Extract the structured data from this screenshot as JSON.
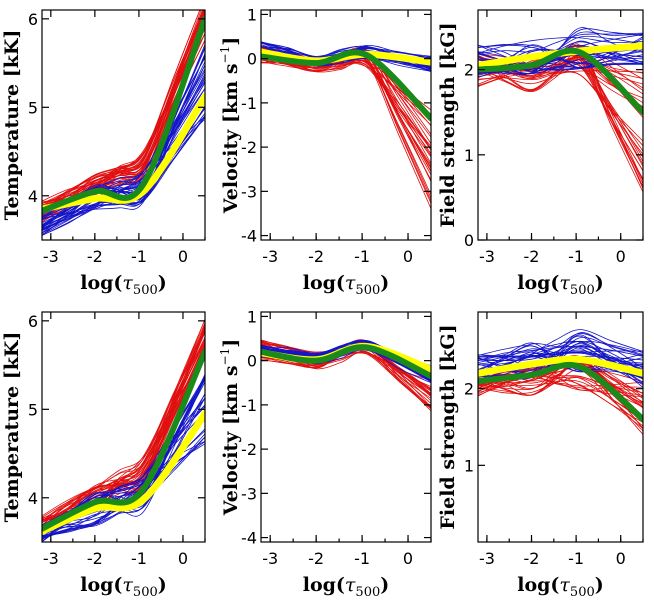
{
  "figure": {
    "rows": 2,
    "cols": 3
  },
  "colors": {
    "red": "#e01010",
    "blue": "#1414c8",
    "yellow": "#ffff00",
    "green": "#1a8a1a"
  },
  "chart_data": [
    {
      "id": "r1-temperature",
      "type": "line",
      "ylabel_main": "Temperature [kK]",
      "xlabel_main": "log(",
      "xlabel_tau": "τ",
      "xlabel_sub": "500",
      "xlabel_close": ")",
      "xlim": [
        -3.2,
        0.5
      ],
      "ylim": [
        3.5,
        6.1
      ],
      "xticks": [
        -3,
        -2,
        -1,
        0
      ],
      "xtick_labels": [
        "-3",
        "-2",
        "-1",
        "0"
      ],
      "yticks": [
        4,
        5,
        6
      ],
      "ytick_labels": [
        "4",
        "5",
        "6"
      ],
      "x_nodes": [
        -3.2,
        -2.0,
        -0.9,
        0.5
      ],
      "bundles": [
        {
          "name": "red",
          "color": "red",
          "count": 34,
          "base": [
            3.82,
            4.12,
            4.38,
            6.0
          ],
          "spread": [
            0.12,
            0.12,
            0.15,
            0.25
          ]
        },
        {
          "name": "blue",
          "count": 34,
          "color": "blue",
          "base": [
            3.68,
            3.98,
            4.1,
            5.3
          ],
          "spread": [
            0.13,
            0.15,
            0.18,
            0.45
          ]
        }
      ],
      "series": [
        {
          "name": "mean-blue",
          "color": "yellow",
          "width": 7,
          "values": [
            3.85,
            3.97,
            4.05,
            5.12
          ]
        },
        {
          "name": "mean-red",
          "color": "green",
          "width": 6,
          "values": [
            3.83,
            4.05,
            4.13,
            6.0
          ]
        }
      ]
    },
    {
      "id": "r1-velocity",
      "type": "line",
      "ylabel_main": "Velocity [km s",
      "ylabel_sup": "−1",
      "ylabel_close": "]",
      "xlabel_main": "log(",
      "xlabel_tau": "τ",
      "xlabel_sub": "500",
      "xlabel_close": ")",
      "xlim": [
        -3.2,
        0.5
      ],
      "ylim": [
        -4.1,
        1.1
      ],
      "xticks": [
        -3,
        -2,
        -1,
        0
      ],
      "xtick_labels": [
        "-3",
        "-2",
        "-1",
        "0"
      ],
      "yticks": [
        -4,
        -3,
        -2,
        -1,
        0,
        1
      ],
      "ytick_labels": [
        "-4",
        "-3",
        "-2",
        "-1",
        "0",
        "1"
      ],
      "x_nodes": [
        -3.2,
        -2.0,
        -0.9,
        0.5
      ],
      "bundles": [
        {
          "name": "red",
          "color": "red",
          "count": 32,
          "base": [
            0.1,
            -0.15,
            0.0,
            -2.4
          ],
          "spread": [
            0.2,
            0.15,
            0.2,
            1.3
          ]
        },
        {
          "name": "blue",
          "color": "blue",
          "count": 30,
          "base": [
            0.2,
            -0.05,
            0.15,
            -0.1
          ],
          "spread": [
            0.2,
            0.12,
            0.15,
            0.2
          ]
        }
      ],
      "series": [
        {
          "name": "mean-blue",
          "color": "yellow",
          "width": 7,
          "values": [
            0.15,
            -0.05,
            0.1,
            -0.08
          ]
        },
        {
          "name": "mean-red",
          "color": "green",
          "width": 6,
          "values": [
            0.05,
            -0.1,
            0.08,
            -1.35
          ]
        }
      ]
    },
    {
      "id": "r1-field",
      "type": "line",
      "ylabel_main": "Field strength [kG]",
      "xlabel_main": "log(",
      "xlabel_tau": "τ",
      "xlabel_sub": "500",
      "xlabel_close": ")",
      "xlim": [
        -3.2,
        0.5
      ],
      "ylim": [
        0.0,
        2.7
      ],
      "xticks": [
        -3,
        -2,
        -1,
        0
      ],
      "xtick_labels": [
        "-3",
        "-2",
        "-1",
        "0"
      ],
      "yticks": [
        0,
        1,
        2
      ],
      "ytick_labels": [
        "0",
        "1",
        "2"
      ],
      "x_nodes": [
        -3.2,
        -2.0,
        -0.9,
        0.5
      ],
      "bundles": [
        {
          "name": "red",
          "color": "red",
          "count": 32,
          "base": [
            2.0,
            1.95,
            2.1,
            1.3
          ],
          "spread": [
            0.2,
            0.22,
            0.2,
            0.75
          ]
        },
        {
          "name": "blue",
          "color": "blue",
          "count": 30,
          "base": [
            2.1,
            2.15,
            2.25,
            2.25
          ],
          "spread": [
            0.2,
            0.2,
            0.25,
            0.2
          ]
        }
      ],
      "series": [
        {
          "name": "mean-blue",
          "color": "yellow",
          "width": 7,
          "values": [
            2.05,
            2.15,
            2.22,
            2.28
          ]
        },
        {
          "name": "mean-red",
          "color": "green",
          "width": 6,
          "values": [
            2.0,
            2.05,
            2.2,
            1.5
          ]
        }
      ]
    },
    {
      "id": "r2-temperature",
      "type": "line",
      "ylabel_main": "Temperature [kK]",
      "xlabel_main": "log(",
      "xlabel_tau": "τ",
      "xlabel_sub": "500",
      "xlabel_close": ")",
      "xlim": [
        -3.2,
        0.5
      ],
      "ylim": [
        3.5,
        6.1
      ],
      "xticks": [
        -3,
        -2,
        -1,
        0
      ],
      "xtick_labels": [
        "-3",
        "-2",
        "-1",
        "0"
      ],
      "yticks": [
        4,
        5,
        6
      ],
      "ytick_labels": [
        "4",
        "5",
        "6"
      ],
      "x_nodes": [
        -3.2,
        -2.0,
        -0.9,
        0.5
      ],
      "bundles": [
        {
          "name": "red",
          "color": "red",
          "count": 34,
          "base": [
            3.7,
            4.0,
            4.3,
            5.8
          ],
          "spread": [
            0.1,
            0.15,
            0.18,
            0.22
          ]
        },
        {
          "name": "blue",
          "color": "blue",
          "count": 32,
          "base": [
            3.6,
            3.88,
            4.05,
            5.0
          ],
          "spread": [
            0.1,
            0.2,
            0.22,
            0.4
          ]
        }
      ],
      "series": [
        {
          "name": "mean-blue",
          "color": "yellow",
          "width": 7,
          "values": [
            3.62,
            3.88,
            3.98,
            4.95
          ]
        },
        {
          "name": "mean-red",
          "color": "green",
          "width": 6,
          "values": [
            3.65,
            3.95,
            4.1,
            5.65
          ]
        }
      ]
    },
    {
      "id": "r2-velocity",
      "type": "line",
      "ylabel_main": "Velocity [km s",
      "ylabel_sup": "−1",
      "ylabel_close": "]",
      "xlabel_main": "log(",
      "xlabel_tau": "τ",
      "xlabel_sub": "500",
      "xlabel_close": ")",
      "xlim": [
        -3.2,
        0.5
      ],
      "ylim": [
        -4.1,
        1.1
      ],
      "xticks": [
        -3,
        -2,
        -1,
        0
      ],
      "xtick_labels": [
        "-3",
        "-2",
        "-1",
        "0"
      ],
      "yticks": [
        -4,
        -3,
        -2,
        -1,
        0,
        1
      ],
      "ytick_labels": [
        "-4",
        "-3",
        "-2",
        "-1",
        "0",
        "1"
      ],
      "x_nodes": [
        -3.2,
        -2.0,
        -0.9,
        0.5
      ],
      "bundles": [
        {
          "name": "red",
          "color": "red",
          "count": 32,
          "base": [
            0.25,
            0.0,
            0.3,
            -0.7
          ],
          "spread": [
            0.25,
            0.2,
            0.15,
            0.45
          ]
        },
        {
          "name": "blue",
          "color": "blue",
          "count": 30,
          "base": [
            0.2,
            0.05,
            0.35,
            -0.3
          ],
          "spread": [
            0.15,
            0.12,
            0.12,
            0.2
          ]
        }
      ],
      "series": [
        {
          "name": "mean-blue",
          "color": "yellow",
          "width": 7,
          "values": [
            0.18,
            0.02,
            0.32,
            -0.2
          ]
        },
        {
          "name": "mean-red",
          "color": "green",
          "width": 6,
          "values": [
            0.2,
            0.0,
            0.3,
            -0.35
          ]
        }
      ]
    },
    {
      "id": "r2-field",
      "type": "line",
      "ylabel_main": "Field strength [kG]",
      "xlabel_main": "log(",
      "xlabel_tau": "τ",
      "xlabel_sub": "500",
      "xlabel_close": ")",
      "xlim": [
        -3.2,
        0.5
      ],
      "ylim": [
        0.0,
        3.0
      ],
      "xticks": [
        -3,
        -2,
        -1,
        0
      ],
      "xtick_labels": [
        "-3",
        "-2",
        "-1",
        "0"
      ],
      "yticks": [
        1,
        2
      ],
      "ytick_labels": [
        "1",
        "2"
      ],
      "x_nodes": [
        -3.2,
        -2.0,
        -0.9,
        0.5
      ],
      "bundles": [
        {
          "name": "red",
          "color": "red",
          "count": 32,
          "base": [
            2.05,
            2.1,
            2.2,
            1.75
          ],
          "spread": [
            0.15,
            0.2,
            0.22,
            0.35
          ]
        },
        {
          "name": "blue",
          "color": "blue",
          "count": 32,
          "base": [
            2.25,
            2.35,
            2.5,
            2.25
          ],
          "spread": [
            0.2,
            0.25,
            0.3,
            0.25
          ]
        }
      ],
      "series": [
        {
          "name": "mean-blue",
          "color": "yellow",
          "width": 7,
          "values": [
            2.2,
            2.32,
            2.38,
            2.2
          ]
        },
        {
          "name": "mean-red",
          "color": "green",
          "width": 6,
          "values": [
            2.1,
            2.18,
            2.28,
            1.6
          ]
        }
      ]
    }
  ]
}
